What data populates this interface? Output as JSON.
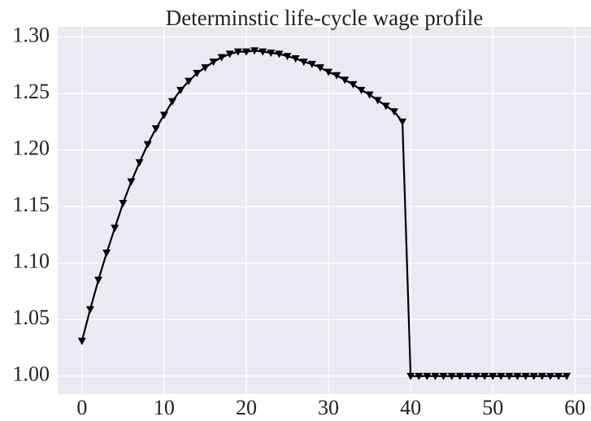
{
  "chart_data": {
    "type": "line",
    "title": "Determinstic life-cycle wage profile",
    "x": [
      0,
      1,
      2,
      3,
      4,
      5,
      6,
      7,
      8,
      9,
      10,
      11,
      12,
      13,
      14,
      15,
      16,
      17,
      18,
      19,
      20,
      21,
      22,
      23,
      24,
      25,
      26,
      27,
      28,
      29,
      30,
      31,
      32,
      33,
      34,
      35,
      36,
      37,
      38,
      39,
      40,
      41,
      42,
      43,
      44,
      45,
      46,
      47,
      48,
      49,
      50,
      51,
      52,
      53,
      54,
      55,
      56,
      57,
      58,
      59
    ],
    "series": [
      {
        "color": "#000000",
        "marker": "triangle-down",
        "values": [
          1.031,
          1.059,
          1.085,
          1.109,
          1.131,
          1.153,
          1.172,
          1.189,
          1.205,
          1.219,
          1.231,
          1.243,
          1.253,
          1.261,
          1.268,
          1.273,
          1.278,
          1.282,
          1.285,
          1.287,
          1.287,
          1.288,
          1.287,
          1.286,
          1.285,
          1.283,
          1.281,
          1.278,
          1.276,
          1.273,
          1.269,
          1.266,
          1.262,
          1.258,
          1.253,
          1.249,
          1.244,
          1.239,
          1.234,
          1.225,
          1.0,
          1.0,
          1.0,
          1.0,
          1.0,
          1.0,
          1.0,
          1.0,
          1.0,
          1.0,
          1.0,
          1.0,
          1.0,
          1.0,
          1.0,
          1.0,
          1.0,
          1.0,
          1.0,
          1.0
        ]
      }
    ],
    "xlim": [
      -2.95,
      61.95
    ],
    "ylim": [
      0.984,
      1.309
    ],
    "xticks": [
      0,
      10,
      20,
      30,
      40,
      50,
      60
    ],
    "yticks": [
      {
        "value": 1.0,
        "label": "1.00"
      },
      {
        "value": 1.05,
        "label": "1.05"
      },
      {
        "value": 1.1,
        "label": "1.10"
      },
      {
        "value": 1.15,
        "label": "1.15"
      },
      {
        "value": 1.2,
        "label": "1.20"
      },
      {
        "value": 1.25,
        "label": "1.25"
      },
      {
        "value": 1.3,
        "label": "1.30"
      }
    ],
    "grid": true
  }
}
